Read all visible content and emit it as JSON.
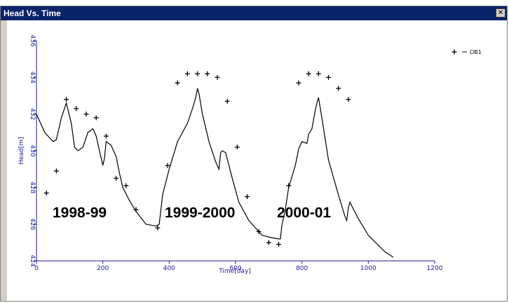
{
  "window": {
    "title": "Head Vs. Time",
    "close_icon": "close-icon"
  },
  "chart_data": {
    "type": "line",
    "xlabel": "Time[day]",
    "ylabel": "Head[m]",
    "xlim": [
      0,
      1200
    ],
    "ylim": [
      424,
      436
    ],
    "x_ticks": [
      "0",
      "200",
      "400",
      "600",
      "800",
      "1000",
      "1200"
    ],
    "y_ticks": [
      "424",
      "426",
      "428",
      "430",
      "432",
      "434",
      "436"
    ],
    "grid": false,
    "legend_position": "top-right",
    "series": [
      {
        "name": "OB1",
        "kind": "observed",
        "x": [
          30,
          60,
          90,
          120,
          150,
          180,
          210,
          240,
          270,
          300,
          365,
          395,
          425,
          455,
          485,
          515,
          545,
          575,
          605,
          635,
          670,
          700,
          730,
          760,
          790,
          820,
          850,
          880,
          910,
          940
        ],
        "y": [
          427.7,
          428.9,
          432.8,
          432.3,
          432.0,
          431.8,
          430.8,
          428.5,
          428.1,
          426.8,
          425.8,
          429.2,
          433.7,
          434.2,
          434.2,
          434.2,
          434.0,
          432.7,
          430.2,
          427.5,
          425.6,
          425.0,
          424.9,
          428.1,
          433.7,
          434.2,
          434.2,
          434.0,
          433.4,
          432.8
        ]
      },
      {
        "kind": "computed",
        "x": [
          0,
          25,
          50,
          60,
          75,
          90,
          105,
          115,
          125,
          140,
          155,
          170,
          180,
          190,
          200,
          205,
          210,
          225,
          240,
          250,
          260,
          280,
          300,
          330,
          360,
          370,
          380,
          400,
          425,
          455,
          470,
          480,
          485,
          490,
          500,
          520,
          540,
          550,
          555,
          560,
          570,
          590,
          610,
          640,
          680,
          700,
          730,
          735,
          740,
          750,
          760,
          780,
          790,
          800,
          815,
          820,
          830,
          840,
          845,
          850,
          860,
          880,
          910,
          930,
          935,
          940,
          945,
          950,
          970,
          1000,
          1050,
          1075
        ],
        "y": [
          432.0,
          431.0,
          430.5,
          430.6,
          431.8,
          432.6,
          431.5,
          430.2,
          430.0,
          430.2,
          431.0,
          431.2,
          430.8,
          430.0,
          429.2,
          429.6,
          430.5,
          430.3,
          429.7,
          428.8,
          428.0,
          427.3,
          426.7,
          426.0,
          425.9,
          426.0,
          427.6,
          429.0,
          430.5,
          431.5,
          432.3,
          432.9,
          433.4,
          433.1,
          432.0,
          430.5,
          429.4,
          429.0,
          429.9,
          430.0,
          429.9,
          428.5,
          427.2,
          426.2,
          425.4,
          425.3,
          425.2,
          425.2,
          426.0,
          426.8,
          428.0,
          429.2,
          430.1,
          430.5,
          430.4,
          430.9,
          431.2,
          432.2,
          432.6,
          432.9,
          431.8,
          429.5,
          427.6,
          426.4,
          426.2,
          426.9,
          427.2,
          427.0,
          426.3,
          425.4,
          424.5,
          424.2
        ]
      }
    ],
    "annotations": [
      "1998-99",
      "1999-2000",
      "2000-01"
    ]
  }
}
